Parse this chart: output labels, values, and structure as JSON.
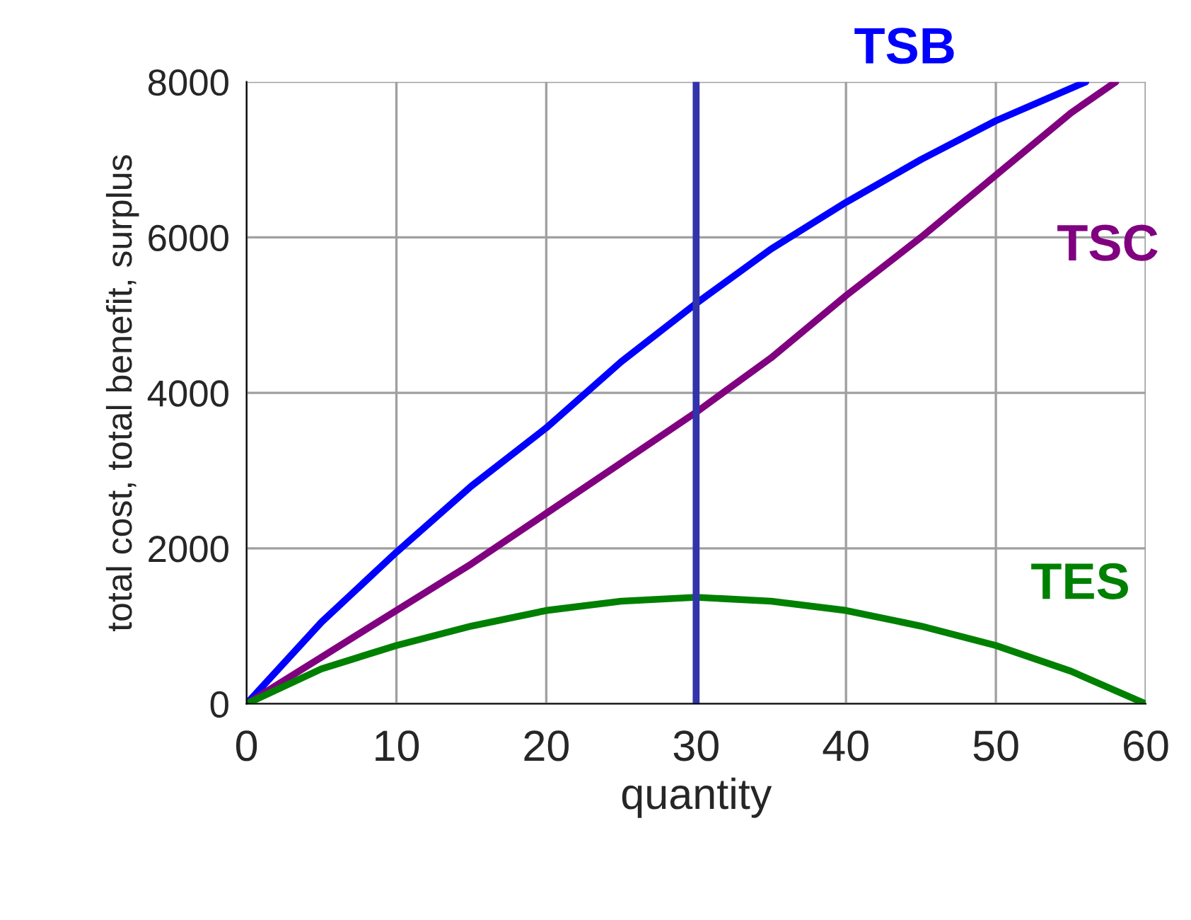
{
  "chart_data": {
    "type": "line",
    "xlabel": "quantity",
    "ylabel": "total cost, total benefit, surplus",
    "xlim": [
      0,
      60
    ],
    "xticks": [
      0,
      10,
      20,
      30,
      40,
      50,
      60
    ],
    "ylim": [
      0,
      8000
    ],
    "yticks": [
      0,
      2000,
      4000,
      6000,
      8000
    ],
    "grid": true,
    "legend": false,
    "marker": "none",
    "line_style": "solid",
    "series": [
      {
        "name": "TSB",
        "color": "#0000ff",
        "x": [
          0,
          5,
          10,
          15,
          20,
          25,
          30,
          35,
          40,
          45,
          50,
          56
        ],
        "values": [
          0,
          1050,
          1950,
          2800,
          3550,
          4400,
          5150,
          5850,
          6450,
          7000,
          7500,
          8000
        ]
      },
      {
        "name": "TSC",
        "color": "#800080",
        "x": [
          0,
          5,
          10,
          15,
          20,
          25,
          30,
          35,
          40,
          45,
          50,
          55,
          58
        ],
        "values": [
          0,
          600,
          1200,
          1800,
          2450,
          3100,
          3750,
          4450,
          5250,
          6000,
          6800,
          7600,
          8000
        ]
      },
      {
        "name": "TES",
        "color": "#008000",
        "x": [
          0,
          5,
          10,
          15,
          20,
          25,
          30,
          35,
          40,
          45,
          50,
          55,
          60
        ],
        "values": [
          0,
          450,
          750,
          1000,
          1200,
          1320,
          1370,
          1320,
          1200,
          1000,
          750,
          420,
          0
        ]
      }
    ],
    "ref_lines": [
      {
        "axis": "x",
        "value": 30,
        "color": "#3333aa",
        "line_style": "solid"
      }
    ]
  }
}
